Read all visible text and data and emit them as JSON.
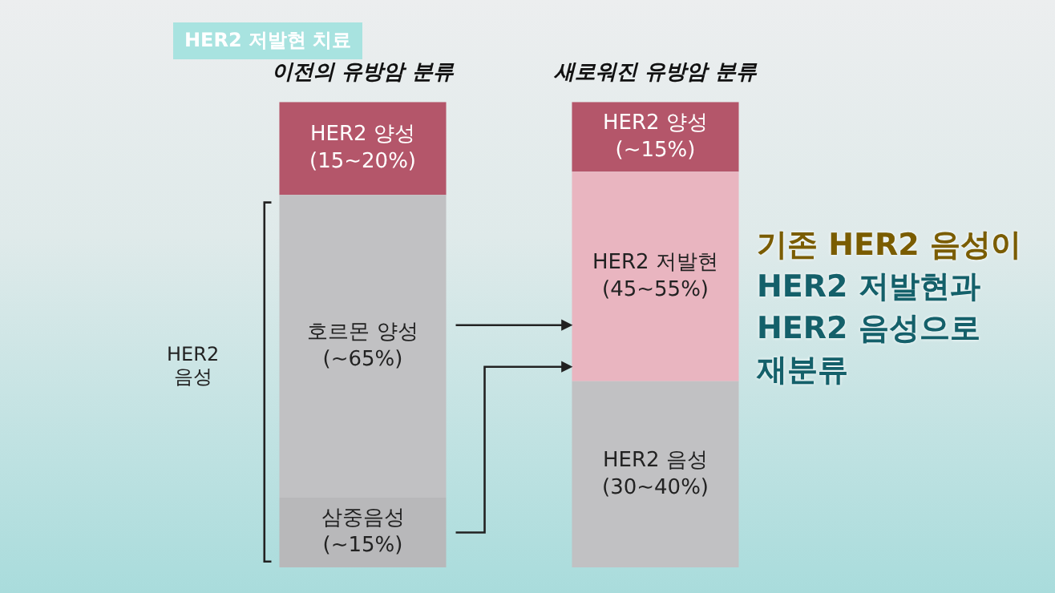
{
  "chart_data": {
    "type": "bar",
    "stacked": true,
    "ylim": [
      0,
      100
    ],
    "tick_labels": "x",
    "categories": [
      "이전의 유방암 분류",
      "새로워진 유방암 분류"
    ],
    "series": [
      {
        "colors": [
          "#b8b8ba",
          "#c1c1c3"
        ],
        "values": [
          15,
          40
        ],
        "value_labels": [
          "삼중음성\n(~15%)",
          "HER2 음성\n(30~40%)"
        ]
      },
      {
        "colors": [
          "#c1c1c3",
          "#e9b5c0"
        ],
        "values": [
          65,
          45
        ],
        "value_labels": [
          "호르몬 양성\n(~65%)",
          "HER2 저발현\n(45~55%)"
        ]
      },
      {
        "colors": [
          "#b4566a",
          "#b4566a"
        ],
        "values": [
          20,
          15
        ],
        "value_labels": [
          "HER2 양성\n(15~20%)",
          "HER2 양성\n(~15%)"
        ]
      }
    ],
    "annotations": [
      "HER2 저발현 치료",
      "HER2\n음성",
      "기존 HER2 음성이\nHER2 저발현과\nHER2 음성으로\n재분류"
    ]
  }
}
